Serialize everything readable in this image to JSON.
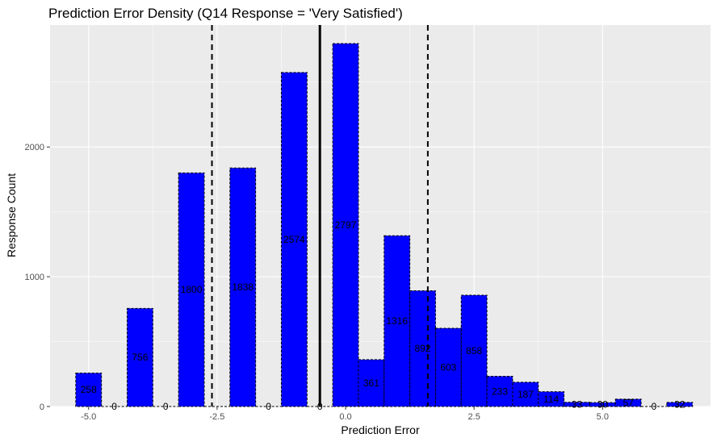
{
  "chart_data": {
    "type": "bar",
    "title": "Prediction Error Density (Q14 Response = 'Very Satisfied')",
    "xlabel": "Prediction Error",
    "ylabel": "Response Count",
    "xlim": [
      -5.75,
      7.1
    ],
    "ylim": [
      0,
      2940
    ],
    "x_ticks": [
      -5.0,
      -2.5,
      0.0,
      2.5,
      5.0
    ],
    "x_tick_labels": [
      "-5.0",
      "-2.5",
      "0.0",
      "2.5",
      "5.0"
    ],
    "y_ticks": [
      0,
      1000,
      2000
    ],
    "y_tick_labels": [
      "0",
      "1000",
      "2000"
    ],
    "bin_width": 0.5,
    "bins": [
      {
        "x": -5.0,
        "value": 258,
        "label": "258"
      },
      {
        "x": -4.5,
        "value": 0,
        "label": "0"
      },
      {
        "x": -4.0,
        "value": 756,
        "label": "756"
      },
      {
        "x": -3.5,
        "value": 0,
        "label": "0"
      },
      {
        "x": -3.0,
        "value": 1800,
        "label": "1800"
      },
      {
        "x": -2.5,
        "value": 0,
        "label": ""
      },
      {
        "x": -2.0,
        "value": 1838,
        "label": "1838"
      },
      {
        "x": -1.5,
        "value": 0,
        "label": "0"
      },
      {
        "x": -1.0,
        "value": 2574,
        "label": "2574"
      },
      {
        "x": -0.5,
        "value": 0,
        "label": "0"
      },
      {
        "x": 0.0,
        "value": 2797,
        "label": "2797"
      },
      {
        "x": 0.5,
        "value": 361,
        "label": "361"
      },
      {
        "x": 1.0,
        "value": 1316,
        "label": "1316"
      },
      {
        "x": 1.5,
        "value": 892,
        "label": "892"
      },
      {
        "x": 2.0,
        "value": 603,
        "label": "603"
      },
      {
        "x": 2.5,
        "value": 858,
        "label": "858"
      },
      {
        "x": 3.0,
        "value": 233,
        "label": "233"
      },
      {
        "x": 3.5,
        "value": 187,
        "label": "187"
      },
      {
        "x": 4.0,
        "value": 114,
        "label": "114"
      },
      {
        "x": 4.5,
        "value": 33,
        "label": "33"
      },
      {
        "x": 5.0,
        "value": 30,
        "label": "30"
      },
      {
        "x": 5.5,
        "value": 57,
        "label": "57"
      },
      {
        "x": 6.0,
        "value": 0,
        "label": "0"
      },
      {
        "x": 6.5,
        "value": 32,
        "label": "32"
      }
    ],
    "reference_lines": [
      {
        "x": -0.5,
        "style": "solid"
      },
      {
        "x": -2.6,
        "style": "dashed"
      },
      {
        "x": 1.6,
        "style": "dashed"
      }
    ],
    "grid": true,
    "colors": {
      "bar_fill": "#0000ff",
      "bar_outline": "#000000",
      "panel_background": "#ebebeb",
      "gridline": "#ffffff",
      "reference_line": "#000000"
    }
  }
}
